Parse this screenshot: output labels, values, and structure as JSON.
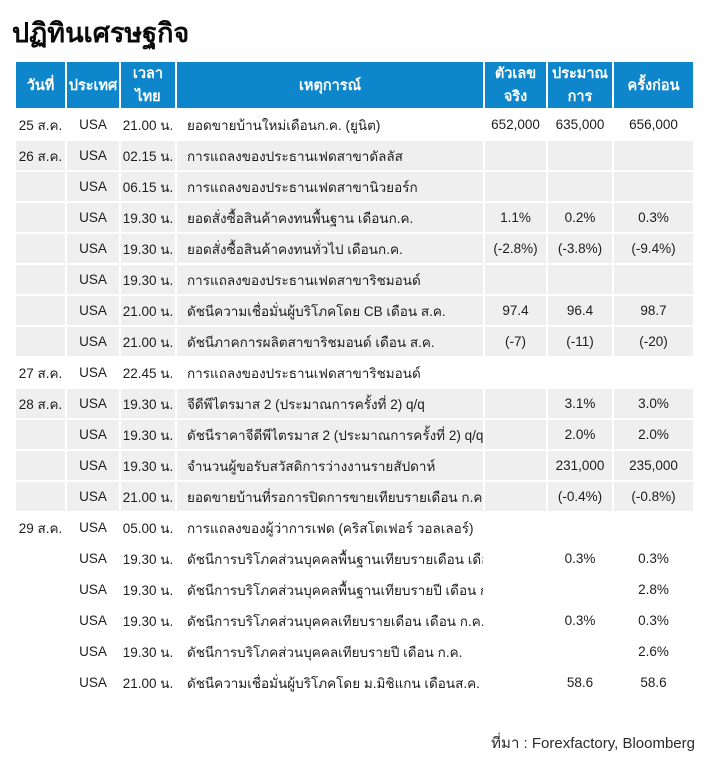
{
  "title": "ปฏิทินเศรษฐกิจ",
  "source": "ที่มา : Forexfactory, Bloomberg",
  "colors": {
    "header_blue": "#0e86cc",
    "row_stripe_gray": "#efefef",
    "header_text": "#ffffff",
    "body_text": "#1d1d1d"
  },
  "table": {
    "columns": [
      "วันที่",
      "ประเทศ",
      "เวลาไทย",
      "เหตุการณ์",
      "ตัวเลขจริง",
      "ประมาณการ",
      "ครั้งก่อน"
    ],
    "rows": [
      {
        "date": "25 ส.ค.",
        "country": "USA",
        "time": "21.00 น.",
        "event": "ยอดขายบ้านใหม่เดือนก.ค. (ยูนิต)",
        "actual": "652,000",
        "forecast": "635,000",
        "previous": "656,000",
        "shade": "white"
      },
      {
        "date": "26 ส.ค.",
        "country": "USA",
        "time": "02.15 น.",
        "event": "การแถลงของประธานเฟดสาขาดัลลัส",
        "actual": "",
        "forecast": "",
        "previous": "",
        "shade": "gray"
      },
      {
        "date": "",
        "country": "USA",
        "time": "06.15 น.",
        "event": "การแถลงของประธานเฟดสาขานิวยอร์ก",
        "actual": "",
        "forecast": "",
        "previous": "",
        "shade": "gray"
      },
      {
        "date": "",
        "country": "USA",
        "time": "19.30 น.",
        "event": "ยอดสั่งซื้อสินค้าคงทนพื้นฐาน เดือนก.ค.",
        "actual": "1.1%",
        "forecast": "0.2%",
        "previous": "0.3%",
        "shade": "gray"
      },
      {
        "date": "",
        "country": "USA",
        "time": "19.30 น.",
        "event": "ยอดสั่งซื้อสินค้าคงทนทั่วไป เดือนก.ค.",
        "actual": "(-2.8%)",
        "forecast": "(-3.8%)",
        "previous": "(-9.4%)",
        "shade": "gray"
      },
      {
        "date": "",
        "country": "USA",
        "time": "19.30 น.",
        "event": "การแถลงของประธานเฟดสาขาริชมอนด์",
        "actual": "",
        "forecast": "",
        "previous": "",
        "shade": "gray"
      },
      {
        "date": "",
        "country": "USA",
        "time": "21.00 น.",
        "event": "ดัชนีความเชื่อมั่นผู้บริโภคโดย CB เดือน ส.ค.",
        "actual": "97.4",
        "forecast": "96.4",
        "previous": "98.7",
        "shade": "gray"
      },
      {
        "date": "",
        "country": "USA",
        "time": "21.00 น.",
        "event": "ดัชนีภาคการผลิตสาขาริชมอนด์ เดือน ส.ค.",
        "actual": "(-7)",
        "forecast": "(-11)",
        "previous": "(-20)",
        "shade": "gray"
      },
      {
        "date": "27 ส.ค.",
        "country": "USA",
        "time": "22.45 น.",
        "event": "การแถลงของประธานเฟดสาขาริชมอนด์",
        "actual": "",
        "forecast": "",
        "previous": "",
        "shade": "white"
      },
      {
        "date": "28 ส.ค.",
        "country": "USA",
        "time": "19.30 น.",
        "event": "จีดีพีไตรมาส 2 (ประมาณการครั้งที่ 2) q/q",
        "actual": "",
        "forecast": "3.1%",
        "previous": "3.0%",
        "shade": "gray"
      },
      {
        "date": "",
        "country": "USA",
        "time": "19.30 น.",
        "event": "ดัชนีราคาจีดีพีไตรมาส 2 (ประมาณการครั้งที่ 2) q/q",
        "actual": "",
        "forecast": "2.0%",
        "previous": "2.0%",
        "shade": "gray"
      },
      {
        "date": "",
        "country": "USA",
        "time": "19.30 น.",
        "event": "จำนวนผู้ขอรับสวัสดิการว่างงานรายสัปดาห์",
        "actual": "",
        "forecast": "231,000",
        "previous": "235,000",
        "shade": "gray"
      },
      {
        "date": "",
        "country": "USA",
        "time": "21.00 น.",
        "event": "ยอดขายบ้านที่รอการปิดการขายเทียบรายเดือน ก.ค.",
        "actual": "",
        "forecast": "(-0.4%)",
        "previous": "(-0.8%)",
        "shade": "gray"
      },
      {
        "date": "29 ส.ค.",
        "country": "USA",
        "time": "05.00 น.",
        "event": "การแถลงของผู้ว่าการเฟด (คริสโตเฟอร์ วอลเลอร์)",
        "actual": "",
        "forecast": "",
        "previous": "",
        "shade": "white"
      },
      {
        "date": "",
        "country": "USA",
        "time": "19.30 น.",
        "event": "ดัชนีการบริโภคส่วนบุคคลพื้นฐานเทียบรายเดือน เดือน ก.ค.",
        "actual": "",
        "forecast": "0.3%",
        "previous": "0.3%",
        "shade": "white"
      },
      {
        "date": "",
        "country": "USA",
        "time": "19.30 น.",
        "event": "ดัชนีการบริโภคส่วนบุคคลพื้นฐานเทียบรายปี เดือน ก.ค.",
        "actual": "",
        "forecast": "",
        "previous": "2.8%",
        "shade": "white"
      },
      {
        "date": "",
        "country": "USA",
        "time": "19.30 น.",
        "event": "ดัชนีการบริโภคส่วนบุคคลเทียบรายเดือน เดือน ก.ค.",
        "actual": "",
        "forecast": "0.3%",
        "previous": "0.3%",
        "shade": "white"
      },
      {
        "date": "",
        "country": "USA",
        "time": "19.30 น.",
        "event": "ดัชนีการบริโภคส่วนบุคคลเทียบรายปี เดือน ก.ค.",
        "actual": "",
        "forecast": "",
        "previous": "2.6%",
        "shade": "white"
      },
      {
        "date": "",
        "country": "USA",
        "time": "21.00 น.",
        "event": "ดัชนีความเชื่อมั่นผู้บริโภคโดย ม.มิชิแกน เดือนส.ค.",
        "actual": "",
        "forecast": "58.6",
        "previous": "58.6",
        "shade": "white"
      }
    ]
  }
}
